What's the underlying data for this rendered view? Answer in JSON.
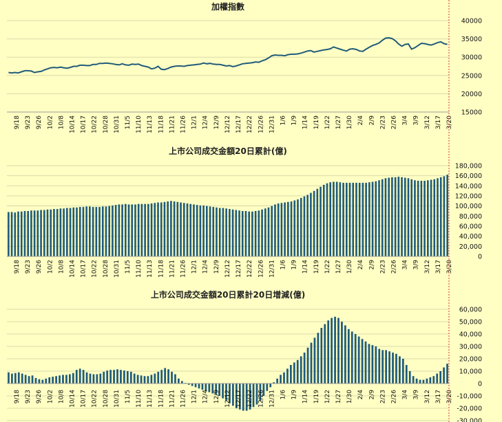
{
  "colors": {
    "background": "#ffffc4",
    "series": "#1f5a7a",
    "marker_line": "#e03030",
    "grid": "#d8d8a8"
  },
  "chart_data": [
    {
      "type": "line",
      "title": "加權指數",
      "ylim": [
        15000,
        40000
      ],
      "yticks": [
        "40000",
        "35000",
        "30000",
        "25000",
        "20000",
        "15000"
      ],
      "grid": true,
      "x_tick_labels": [
        "9/18",
        "9/23",
        "9/26",
        "10/2",
        "10/8",
        "10/14",
        "10/17",
        "10/22",
        "10/28",
        "10/31",
        "11/5",
        "11/10",
        "11/13",
        "11/18",
        "11/21",
        "11/26",
        "12/1",
        "12/4",
        "12/9",
        "12/12",
        "12/17",
        "12/22",
        "12/26",
        "12/31",
        "1/6",
        "1/9",
        "1/14",
        "1/19",
        "1/22",
        "1/27",
        "1/30",
        "2/4",
        "2/9",
        "2/23",
        "2/26",
        "3/4",
        "3/9",
        "3/12",
        "3/17",
        "3/20"
      ],
      "values": [
        25800,
        25700,
        25800,
        25700,
        26000,
        26300,
        26300,
        26200,
        25800,
        26000,
        26100,
        26500,
        26800,
        27100,
        27200,
        27100,
        27300,
        27100,
        27000,
        27200,
        27500,
        27500,
        27800,
        27800,
        27700,
        27700,
        28000,
        28000,
        28300,
        28300,
        28400,
        28300,
        28200,
        28000,
        27900,
        28200,
        27900,
        27800,
        28100,
        28000,
        28100,
        27700,
        27500,
        27300,
        26800,
        27000,
        27500,
        26700,
        26600,
        26900,
        27300,
        27500,
        27600,
        27600,
        27500,
        27700,
        27800,
        27900,
        28000,
        28100,
        28400,
        28200,
        28300,
        28100,
        28000,
        28000,
        27800,
        27600,
        27700,
        27400,
        27600,
        27900,
        28200,
        28300,
        28400,
        28500,
        28700,
        28600,
        29000,
        29300,
        29800,
        30400,
        30600,
        30500,
        30500,
        30400,
        30700,
        30800,
        30800,
        30900,
        31100,
        31400,
        31700,
        31800,
        31400,
        31600,
        31800,
        32000,
        32100,
        32300,
        32800,
        32500,
        32200,
        31900,
        31700,
        32200,
        32300,
        32100,
        31700,
        31600,
        32200,
        32700,
        33200,
        33500,
        33900,
        34600,
        35200,
        35300,
        35100,
        34500,
        33600,
        33000,
        33500,
        33600,
        32200,
        32600,
        33200,
        33800,
        33700,
        33500,
        33300,
        33600,
        34000,
        34200,
        33700,
        33500
      ]
    },
    {
      "type": "bar",
      "title": "上市公司成交金額20日累計(億)",
      "ylim": [
        0,
        180000
      ],
      "yticks": [
        "180,000",
        "160,000",
        "140,000",
        "120,000",
        "100,000",
        "80,000",
        "60,000",
        "40,000",
        "20,000",
        "0"
      ],
      "grid": true,
      "x_tick_labels": [
        "9/18",
        "9/23",
        "9/26",
        "10/2",
        "10/8",
        "10/14",
        "10/17",
        "10/22",
        "10/28",
        "10/31",
        "11/5",
        "11/10",
        "11/13",
        "11/18",
        "11/21",
        "11/26",
        "12/1",
        "12/4",
        "12/9",
        "12/12",
        "12/17",
        "12/22",
        "12/26",
        "12/31",
        "1/6",
        "1/9",
        "1/14",
        "1/19",
        "1/22",
        "1/27",
        "1/30",
        "2/4",
        "2/9",
        "2/23",
        "2/26",
        "3/4",
        "3/9",
        "3/12",
        "3/17",
        "3/20"
      ],
      "values": [
        88000,
        88000,
        87000,
        89000,
        89000,
        90000,
        90000,
        91000,
        91000,
        91000,
        92000,
        92000,
        93000,
        93000,
        94000,
        94000,
        95000,
        95000,
        96000,
        96000,
        97000,
        97000,
        98000,
        98000,
        99000,
        99000,
        98000,
        98000,
        98000,
        99000,
        99000,
        100000,
        101000,
        102000,
        103000,
        103000,
        104000,
        103000,
        103000,
        103000,
        104000,
        104000,
        104000,
        104000,
        105000,
        106000,
        107000,
        107000,
        108000,
        109000,
        110000,
        109000,
        108000,
        107000,
        106000,
        105000,
        104000,
        103000,
        102000,
        101000,
        101000,
        100000,
        99000,
        98000,
        97000,
        96000,
        96000,
        95000,
        94000,
        93000,
        92000,
        91000,
        90000,
        90000,
        89000,
        89000,
        90000,
        91000,
        93000,
        95000,
        97000,
        100000,
        103000,
        105000,
        106000,
        107000,
        108000,
        109000,
        111000,
        113000,
        116000,
        119000,
        122000,
        126000,
        130000,
        134000,
        138000,
        142000,
        145000,
        147000,
        148000,
        148000,
        147000,
        146000,
        146000,
        146000,
        146000,
        146000,
        146000,
        146000,
        146000,
        147000,
        148000,
        149000,
        151000,
        153000,
        155000,
        156000,
        157000,
        157000,
        158000,
        157000,
        156000,
        155000,
        153000,
        151000,
        150000,
        150000,
        150000,
        151000,
        152000,
        153000,
        155000,
        157000,
        159000,
        162000
      ]
    },
    {
      "type": "bar",
      "title": "上市公司成交金額20日累計20日增減(億)",
      "ylim": [
        -30000,
        60000
      ],
      "yticks": [
        "60,000",
        "50,000",
        "40,000",
        "30,000",
        "20,000",
        "10,000",
        "0",
        "-10,000",
        "-20,000",
        "-30,000"
      ],
      "grid": true,
      "x_tick_labels": [
        "9/18",
        "9/23",
        "9/26",
        "10/2",
        "10/8",
        "10/14",
        "10/17",
        "10/22",
        "10/28",
        "10/31",
        "11/5",
        "11/10",
        "11/13",
        "11/18",
        "11/21",
        "11/26",
        "12/1",
        "12/4",
        "12/9",
        "12/12",
        "12/17",
        "12/22",
        "12/26",
        "12/31",
        "1/6",
        "1/9",
        "1/14",
        "1/19",
        "1/22",
        "1/27",
        "1/30",
        "2/4",
        "2/9",
        "2/23",
        "2/26",
        "3/4",
        "3/9",
        "3/12",
        "3/17",
        "3/20"
      ],
      "values": [
        9000,
        8000,
        8500,
        9000,
        8000,
        7000,
        6000,
        6500,
        4500,
        3500,
        3000,
        4000,
        5000,
        5500,
        6000,
        6500,
        7000,
        7000,
        7500,
        8500,
        11000,
        12000,
        11000,
        9000,
        8000,
        7500,
        7500,
        8000,
        9500,
        10500,
        11000,
        11000,
        11500,
        11000,
        10500,
        10000,
        9500,
        8000,
        7000,
        6500,
        6000,
        6000,
        7000,
        8000,
        9500,
        11000,
        12500,
        11500,
        9500,
        7500,
        4000,
        2000,
        500,
        -1000,
        -2000,
        -3000,
        -4000,
        -5000,
        -6000,
        -7000,
        -8000,
        -9000,
        -10000,
        -12000,
        -14000,
        -16000,
        -18000,
        -20000,
        -21000,
        -22000,
        -22000,
        -21000,
        -19000,
        -17000,
        -14000,
        -10000,
        -6000,
        -3000,
        1000,
        4000,
        7000,
        9000,
        12000,
        15000,
        17000,
        19000,
        22000,
        25000,
        29000,
        33000,
        37000,
        41000,
        45000,
        48000,
        51000,
        53000,
        54000,
        53000,
        50000,
        47000,
        44000,
        42000,
        40000,
        38000,
        36000,
        34000,
        32000,
        31000,
        30000,
        28000,
        27000,
        27000,
        26000,
        25000,
        24000,
        22000,
        20000,
        15000,
        10000,
        6000,
        4000,
        3000,
        3000,
        4000,
        5000,
        6000,
        8000,
        10000,
        13000,
        16000
      ]
    }
  ]
}
